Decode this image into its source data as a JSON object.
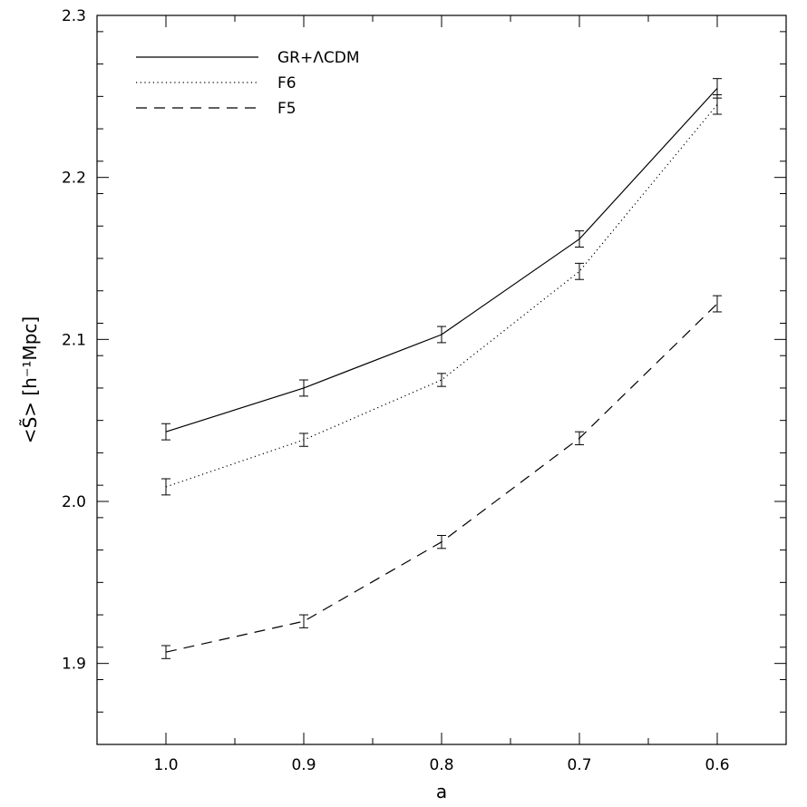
{
  "chart_data": {
    "type": "line",
    "xlabel": "a",
    "ylabel": "<S̃> [h⁻¹Mpc]",
    "xlim": [
      1.05,
      0.55
    ],
    "ylim": [
      1.85,
      2.3
    ],
    "x_reversed": true,
    "xticks": [
      1.0,
      0.9,
      0.8,
      0.7,
      0.6
    ],
    "xtick_labels": [
      "1.0",
      "0.9",
      "0.8",
      "0.7",
      "0.6"
    ],
    "yticks": [
      1.9,
      2.0,
      2.1,
      2.2,
      2.3
    ],
    "ytick_labels": [
      "1.9",
      "2.0",
      "2.1",
      "2.2",
      "2.3"
    ],
    "grid": false,
    "legend_position": "top-left",
    "x": [
      1.0,
      0.9,
      0.8,
      0.7,
      0.6
    ],
    "series": [
      {
        "name": "GR+ΛCDM",
        "line_style": "solid",
        "values": [
          2.043,
          2.07,
          2.103,
          2.162,
          2.255
        ],
        "errors": [
          0.005,
          0.005,
          0.005,
          0.005,
          0.006
        ]
      },
      {
        "name": "F6",
        "line_style": "dotted",
        "values": [
          2.009,
          2.038,
          2.075,
          2.142,
          2.245
        ],
        "errors": [
          0.005,
          0.004,
          0.004,
          0.005,
          0.006
        ]
      },
      {
        "name": "F5",
        "line_style": "dashed",
        "values": [
          1.907,
          1.926,
          1.975,
          2.039,
          2.122
        ],
        "errors": [
          0.004,
          0.004,
          0.004,
          0.004,
          0.005
        ]
      }
    ]
  }
}
